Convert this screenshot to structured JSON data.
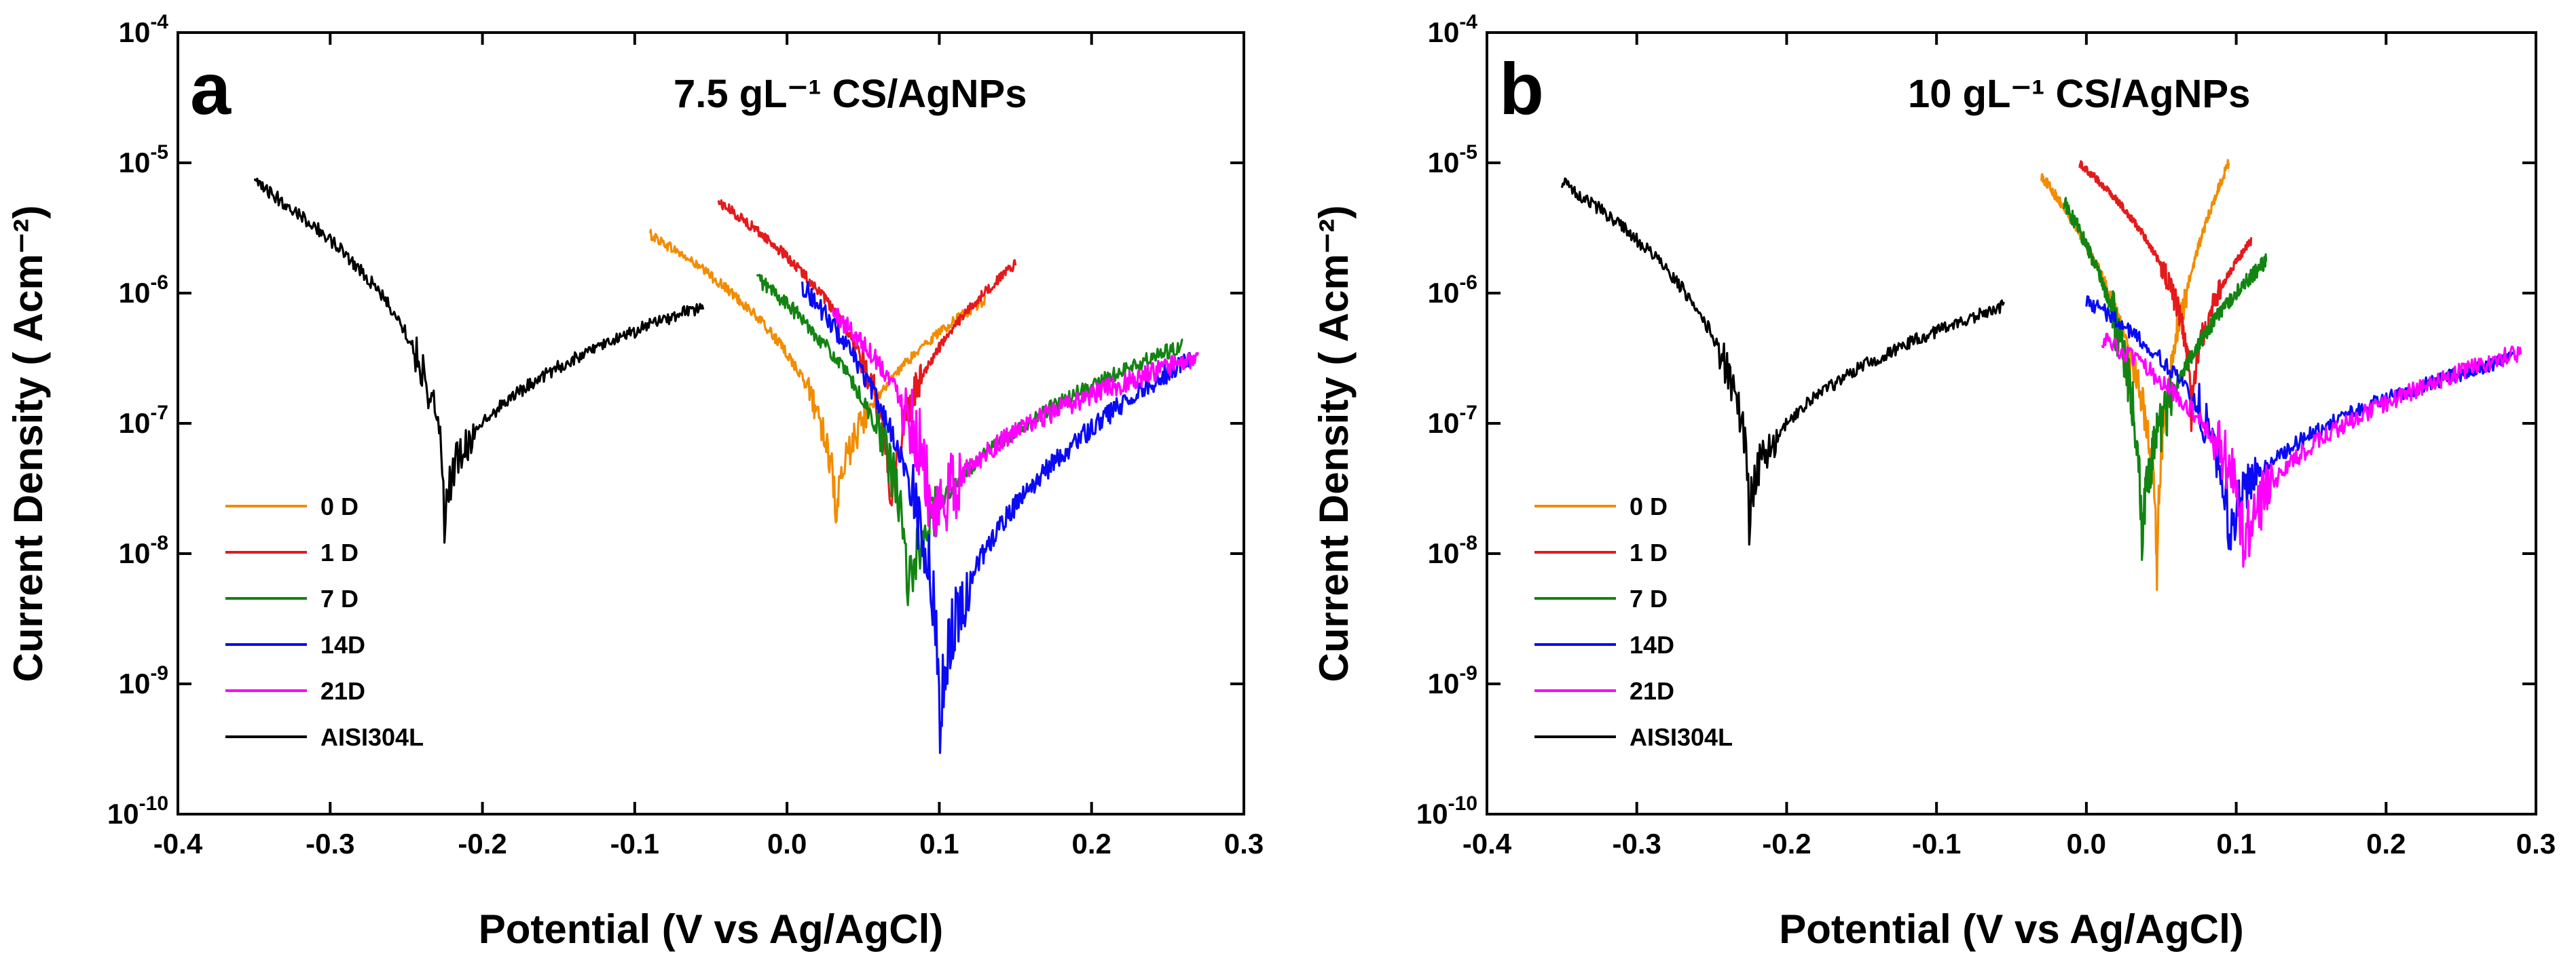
{
  "chart_data": [
    {
      "type": "line",
      "panel_letter": "a",
      "title": "7.5 gL⁻¹ CS/AgNPs",
      "xlabel": "Potential (V vs Ag/AgCl)",
      "ylabel": "Current Density ( Acm⁻²)",
      "xlim": [
        -0.4,
        0.3
      ],
      "ylim_log10": [
        -10,
        -4
      ],
      "x_ticks": [
        "-0.4",
        "-0.3",
        "-0.2",
        "-0.1",
        "0.0",
        "0.1",
        "0.2",
        "0.3"
      ],
      "y_ticks": [
        {
          "base": "10",
          "exp": "-10"
        },
        {
          "base": "10",
          "exp": "-9"
        },
        {
          "base": "10",
          "exp": "-8"
        },
        {
          "base": "10",
          "exp": "-7"
        },
        {
          "base": "10",
          "exp": "-6"
        },
        {
          "base": "10",
          "exp": "-5"
        },
        {
          "base": "10",
          "exp": "-4"
        }
      ],
      "legend_position": "lower-left",
      "series": [
        {
          "name": "0 D",
          "color": "#f28c00",
          "x_start": -0.09,
          "x_end": 0.13,
          "x_corr": 0.032,
          "log_i_corr": -8.0,
          "log_i_start": -5.55,
          "log_i_end": -6.05,
          "noise": 0.04
        },
        {
          "name": "1 D",
          "color": "#e41a1c",
          "x_start": -0.045,
          "x_end": 0.15,
          "x_corr": 0.068,
          "log_i_corr": -7.9,
          "log_i_start": -5.3,
          "log_i_end": -5.78,
          "noise": 0.04
        },
        {
          "name": "7 D",
          "color": "#128412",
          "x_start": -0.02,
          "x_end": 0.26,
          "x_corr": 0.079,
          "log_i_corr": -8.6,
          "log_i_start": -5.88,
          "log_i_end": -6.4,
          "noise": 0.06
        },
        {
          "name": "14D",
          "color": "#0a0af5",
          "x_start": 0.01,
          "x_end": 0.265,
          "x_corr": 0.1,
          "log_i_corr": -9.6,
          "log_i_start": -5.94,
          "log_i_end": -6.5,
          "noise": 0.08
        },
        {
          "name": "21D",
          "color": "#ff00ff",
          "x_start": 0.03,
          "x_end": 0.27,
          "x_corr": 0.095,
          "log_i_corr": -8.1,
          "log_i_start": -6.15,
          "log_i_end": -6.5,
          "noise": 0.08
        },
        {
          "name": "AISI304L",
          "color": "#000000",
          "x_start": -0.35,
          "x_end": -0.055,
          "x_corr": -0.225,
          "log_i_corr": -7.85,
          "log_i_start": -5.15,
          "log_i_end": -6.1,
          "noise": 0.05
        }
      ]
    },
    {
      "type": "line",
      "panel_letter": "b",
      "title": "10 gL⁻¹ CS/AgNPs",
      "xlabel": "Potential (V vs Ag/AgCl)",
      "ylabel": "Current Density ( Acm⁻²)",
      "xlim": [
        -0.4,
        0.3
      ],
      "ylim_log10": [
        -10,
        -4
      ],
      "x_ticks": [
        "-0.4",
        "-0.3",
        "-0.2",
        "-0.1",
        "0.0",
        "0.1",
        "0.2",
        "0.3"
      ],
      "y_ticks": [
        {
          "base": "10",
          "exp": "-10"
        },
        {
          "base": "10",
          "exp": "-9"
        },
        {
          "base": "10",
          "exp": "-8"
        },
        {
          "base": "10",
          "exp": "-7"
        },
        {
          "base": "10",
          "exp": "-6"
        },
        {
          "base": "10",
          "exp": "-5"
        },
        {
          "base": "10",
          "exp": "-4"
        }
      ],
      "legend_position": "lower-left",
      "series": [
        {
          "name": "0 D",
          "color": "#f28c00",
          "x_start": -0.03,
          "x_end": 0.095,
          "x_corr": 0.047,
          "log_i_corr": -8.45,
          "log_i_start": -5.1,
          "log_i_end": -5.0,
          "noise": 0.04
        },
        {
          "name": "1 D",
          "color": "#e41a1c",
          "x_start": -0.005,
          "x_end": 0.11,
          "x_corr": 0.07,
          "log_i_corr": -7.15,
          "log_i_start": -5.0,
          "log_i_end": -5.6,
          "noise": 0.03
        },
        {
          "name": "7 D",
          "color": "#128412",
          "x_start": -0.015,
          "x_end": 0.12,
          "x_corr": 0.037,
          "log_i_corr": -8.25,
          "log_i_start": -5.3,
          "log_i_end": -5.75,
          "noise": 0.06
        },
        {
          "name": "14D",
          "color": "#0a0af5",
          "x_start": 0.0,
          "x_end": 0.285,
          "x_corr": 0.095,
          "log_i_corr": -8.05,
          "log_i_start": -6.05,
          "log_i_end": -6.5,
          "noise": 0.06
        },
        {
          "name": "21D",
          "color": "#ff00ff",
          "x_start": 0.01,
          "x_end": 0.29,
          "x_corr": 0.105,
          "log_i_corr": -8.2,
          "log_i_start": -6.35,
          "log_i_end": -6.45,
          "noise": 0.07
        },
        {
          "name": "AISI304L",
          "color": "#000000",
          "x_start": -0.35,
          "x_end": -0.055,
          "x_corr": -0.225,
          "log_i_corr": -7.85,
          "log_i_start": -5.15,
          "log_i_end": -6.1,
          "noise": 0.05
        }
      ]
    }
  ]
}
